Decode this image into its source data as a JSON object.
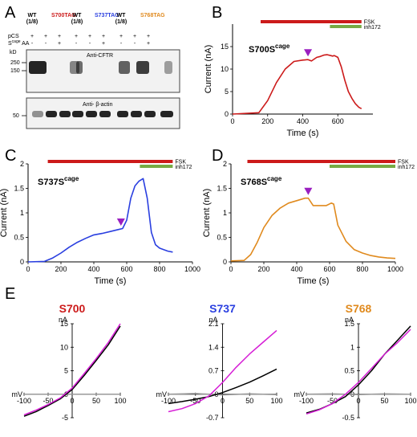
{
  "panel_letters": {
    "a": "A",
    "b": "B",
    "c": "C",
    "d": "D",
    "e": "E"
  },
  "colors": {
    "red": "#cc1a1a",
    "blue": "#2a3fe0",
    "orange": "#e08a1e",
    "green": "#77aa44",
    "purple": "#9a1fc0",
    "magenta": "#d61ed6",
    "gray": "#999999"
  },
  "blot": {
    "lanes": [
      {
        "top": "WT",
        "sub": "(1/8)",
        "color": "#000000"
      },
      {
        "top": "S700TAG",
        "sub": "",
        "color": "#cc1a1a"
      },
      {
        "top": "WT",
        "sub": "(1/8)",
        "color": "#000000"
      },
      {
        "top": "S737TAG",
        "sub": "",
        "color": "#2a3fe0"
      },
      {
        "top": "WT",
        "sub": "(1/8)",
        "color": "#000000"
      },
      {
        "top": "S768TAG",
        "sub": "",
        "color": "#e08a1e"
      }
    ],
    "row1_label": "pCS",
    "row1_marks": [
      "+",
      "+",
      "+",
      "+",
      "+",
      "+",
      "+",
      "+",
      "+"
    ],
    "row2_label_main": "S",
    "row2_label_sup": "cage",
    "row2_label_tail": " AA",
    "row2_marks": [
      "-",
      "-",
      "+",
      "-",
      "-",
      "+",
      "-",
      "-",
      "+"
    ],
    "kd_label": "kD",
    "upper_title": "Anti-CFTR",
    "upper_markers": [
      "250",
      "150"
    ],
    "lower_title": "Anti- β-actin",
    "lower_markers": [
      "50"
    ]
  },
  "bar_labels": {
    "fsk": "FSK",
    "inh": "inh172"
  },
  "chart_data": [
    {
      "type": "line",
      "panel": "B",
      "title_main": "S700S",
      "title_sup": "cage",
      "xlabel": "Time (s)",
      "ylabel": "Current (nA)",
      "xlim": [
        0,
        800
      ],
      "ylim": [
        0,
        20
      ],
      "xticks": [
        "0",
        "200",
        "400",
        "600"
      ],
      "yticks": [
        "0",
        "5",
        "10",
        "15"
      ],
      "series": [
        {
          "color": "#cc1a1a",
          "x": [
            0,
            150,
            200,
            250,
            300,
            350,
            400,
            430,
            450,
            480,
            500,
            520,
            540,
            560,
            570,
            580,
            600,
            620,
            640,
            660,
            680,
            700,
            720,
            735
          ],
          "y": [
            0,
            0.3,
            3,
            7,
            10,
            11.7,
            12,
            12.1,
            11.8,
            12.6,
            12.8,
            13.1,
            13.2,
            13,
            12.9,
            13,
            12.6,
            10.5,
            7.5,
            5,
            3.5,
            2.3,
            1.5,
            1.2
          ]
        }
      ],
      "fsk_range": [
        160,
        735
      ],
      "inh_range": [
        555,
        735
      ],
      "arrow_x": 430
    },
    {
      "type": "line",
      "panel": "C",
      "title_main": "S737S",
      "title_sup": "cage",
      "xlabel": "Time (s)",
      "ylabel": "Current (nA)",
      "xlim": [
        0,
        1000
      ],
      "ylim": [
        0,
        2
      ],
      "xticks": [
        "0",
        "200",
        "400",
        "600",
        "800",
        "1000"
      ],
      "yticks": [
        "0",
        "0.5",
        "1",
        "1.5",
        "2"
      ],
      "series": [
        {
          "color": "#2a3fe0",
          "x": [
            0,
            100,
            150,
            200,
            250,
            300,
            350,
            400,
            450,
            500,
            550,
            575,
            600,
            625,
            650,
            675,
            700,
            725,
            750,
            775,
            800,
            825,
            850,
            880
          ],
          "y": [
            0,
            0.01,
            0.08,
            0.18,
            0.3,
            0.4,
            0.48,
            0.55,
            0.58,
            0.62,
            0.66,
            0.68,
            0.85,
            1.3,
            1.55,
            1.65,
            1.7,
            1.3,
            0.6,
            0.35,
            0.28,
            0.25,
            0.22,
            0.2
          ]
        }
      ],
      "fsk_range": [
        120,
        880
      ],
      "inh_range": [
        680,
        880
      ],
      "arrow_x": 565
    },
    {
      "type": "line",
      "panel": "D",
      "title_main": "S768S",
      "title_sup": "cage",
      "xlabel": "Time (s)",
      "ylabel": "Current (nA)",
      "xlim": [
        0,
        1000
      ],
      "ylim": [
        0,
        2
      ],
      "xticks": [
        "0",
        "200",
        "400",
        "600",
        "800",
        "1000"
      ],
      "yticks": [
        "0",
        "0.5",
        "1",
        "1.5",
        "2"
      ],
      "series": [
        {
          "color": "#e08a1e",
          "x": [
            0,
            80,
            120,
            160,
            200,
            250,
            300,
            350,
            400,
            450,
            470,
            500,
            550,
            580,
            610,
            625,
            650,
            700,
            750,
            800,
            850,
            900,
            950,
            1000
          ],
          "y": [
            0.02,
            0.03,
            0.15,
            0.4,
            0.7,
            0.95,
            1.1,
            1.2,
            1.25,
            1.3,
            1.3,
            1.15,
            1.15,
            1.15,
            1.2,
            1.18,
            0.75,
            0.42,
            0.25,
            0.18,
            0.13,
            0.1,
            0.08,
            0.07
          ]
        }
      ],
      "fsk_range": [
        100,
        1000
      ],
      "inh_range": [
        600,
        1000
      ],
      "arrow_x": 470
    },
    {
      "type": "line",
      "panel": "E1",
      "title": "S700",
      "title_color": "#cc1a1a",
      "xlabel": "mV",
      "ylabel": "nA",
      "xlim": [
        -100,
        100
      ],
      "ylim": [
        -5,
        15
      ],
      "xticks": [
        "-100",
        "-50",
        "0",
        "50",
        "100"
      ],
      "yticks": [
        "-5",
        "0",
        "5",
        "10",
        "15"
      ],
      "series": [
        {
          "color": "#999999",
          "x": [
            -100,
            100
          ],
          "y": [
            0,
            0
          ]
        },
        {
          "color": "#000000",
          "x": [
            -100,
            -75,
            -50,
            -25,
            0,
            25,
            50,
            75,
            100
          ],
          "y": [
            -4.7,
            -3.7,
            -2.4,
            -1.0,
            1.0,
            4.0,
            7.2,
            10.5,
            14.5
          ]
        },
        {
          "color": "#d61ed6",
          "x": [
            -100,
            -75,
            -50,
            -25,
            0,
            25,
            50,
            75,
            100
          ],
          "y": [
            -4.4,
            -3.4,
            -2.2,
            -0.8,
            1.3,
            4.4,
            7.6,
            11.0,
            15.0
          ]
        }
      ]
    },
    {
      "type": "line",
      "panel": "E2",
      "title": "S737",
      "title_color": "#2a3fe0",
      "xlabel": "mV",
      "ylabel": "nA",
      "xlim": [
        -100,
        100
      ],
      "ylim": [
        -0.7,
        2.1
      ],
      "xticks": [
        "-100",
        "-50",
        "0",
        "50",
        "100"
      ],
      "yticks": [
        "-0.7",
        "0",
        "0.7",
        "1.4",
        "2.1"
      ],
      "series": [
        {
          "color": "#999999",
          "x": [
            -100,
            -50,
            0,
            50,
            100
          ],
          "y": [
            0,
            0.02,
            -0.02,
            0.01,
            -0.01
          ]
        },
        {
          "color": "#000000",
          "x": [
            -100,
            -75,
            -50,
            -25,
            0,
            25,
            50,
            75,
            100
          ],
          "y": [
            -0.28,
            -0.22,
            -0.15,
            -0.07,
            0.05,
            0.2,
            0.36,
            0.55,
            0.75
          ]
        },
        {
          "color": "#d61ed6",
          "x": [
            -100,
            -75,
            -50,
            -25,
            0,
            25,
            50,
            75,
            100
          ],
          "y": [
            -0.52,
            -0.43,
            -0.28,
            -0.05,
            0.35,
            0.8,
            1.2,
            1.55,
            1.9
          ]
        }
      ]
    },
    {
      "type": "line",
      "panel": "E3",
      "title": "S768",
      "title_color": "#e08a1e",
      "xlabel": "mV",
      "ylabel": "nA",
      "xlim": [
        -100,
        100
      ],
      "ylim": [
        -0.5,
        1.5
      ],
      "xticks": [
        "-100",
        "-50",
        "0",
        "50",
        "100"
      ],
      "yticks": [
        "-0.5",
        "0",
        "0.5",
        "1",
        "1.5"
      ],
      "series": [
        {
          "color": "#999999",
          "x": [
            -100,
            -50,
            0,
            50,
            100
          ],
          "y": [
            0,
            0.01,
            -0.01,
            0.01,
            0
          ]
        },
        {
          "color": "#000000",
          "x": [
            -100,
            -75,
            -50,
            -25,
            0,
            25,
            50,
            75,
            100
          ],
          "y": [
            -0.4,
            -0.32,
            -0.2,
            -0.05,
            0.2,
            0.5,
            0.85,
            1.15,
            1.45
          ]
        },
        {
          "color": "#d61ed6",
          "x": [
            -100,
            -75,
            -50,
            -25,
            0,
            25,
            50,
            75,
            100
          ],
          "y": [
            -0.42,
            -0.33,
            -0.2,
            0.0,
            0.25,
            0.55,
            0.85,
            1.1,
            1.38
          ]
        }
      ]
    }
  ]
}
